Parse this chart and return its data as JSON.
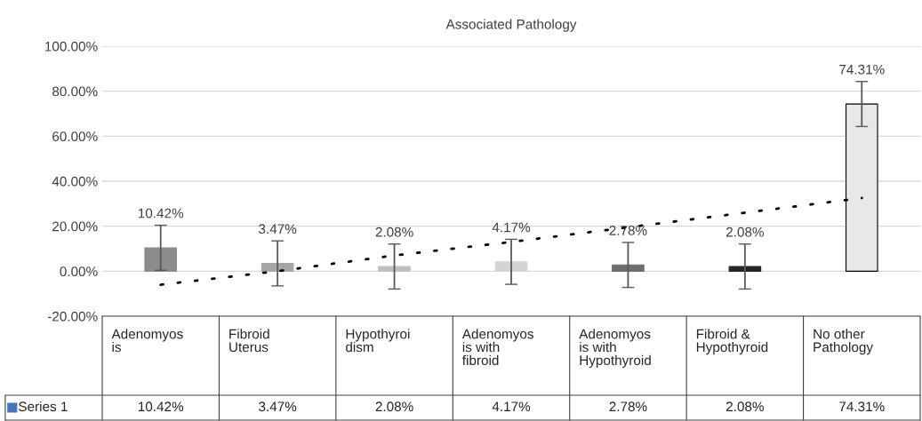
{
  "chart_data": {
    "type": "bar",
    "title": "Associated Pathology",
    "categories": [
      "Adenomyos\nis",
      "Fibroid\nUterus",
      "Hypothyroi\ndism",
      "Adenomyos\nis with\nfibroid",
      "Adenomyos\nis with\nHypothyroid",
      "Fibroid &\nHypothyroid",
      "No other\nPathology"
    ],
    "series": [
      {
        "name": "Series 1",
        "color": "#4472c4",
        "colors": [
          "#8c8c8c",
          "#a6a6a6",
          "#bfbfbf",
          "#d4d4d4",
          "#6e6e6e",
          "#262626",
          "#e8e8e8"
        ],
        "values": [
          10.42,
          3.47,
          2.08,
          4.17,
          2.78,
          2.08,
          74.31
        ],
        "errors": [
          10,
          10,
          10,
          10,
          10,
          10,
          10
        ],
        "value_labels": [
          "10.42%",
          "3.47%",
          "2.08%",
          "4.17%",
          "2.78%",
          "2.08%",
          "74.31%"
        ]
      },
      {
        "type": "line",
        "color": "#000000",
        "line_style": "dotted",
        "values": [
          -6,
          0,
          7,
          13,
          19.5,
          26,
          32.5
        ]
      }
    ],
    "ylim": [
      -20,
      100
    ],
    "yticks": [
      {
        "value": -20,
        "label": "-20.00%"
      },
      {
        "value": 0,
        "label": "0.00%"
      },
      {
        "value": 20,
        "label": "20.00%"
      },
      {
        "value": 40,
        "label": "40.00%"
      },
      {
        "value": 60,
        "label": "60.00%"
      },
      {
        "value": 80,
        "label": "80.00%"
      },
      {
        "value": 100,
        "label": "100.00%"
      }
    ],
    "grid": "y"
  }
}
